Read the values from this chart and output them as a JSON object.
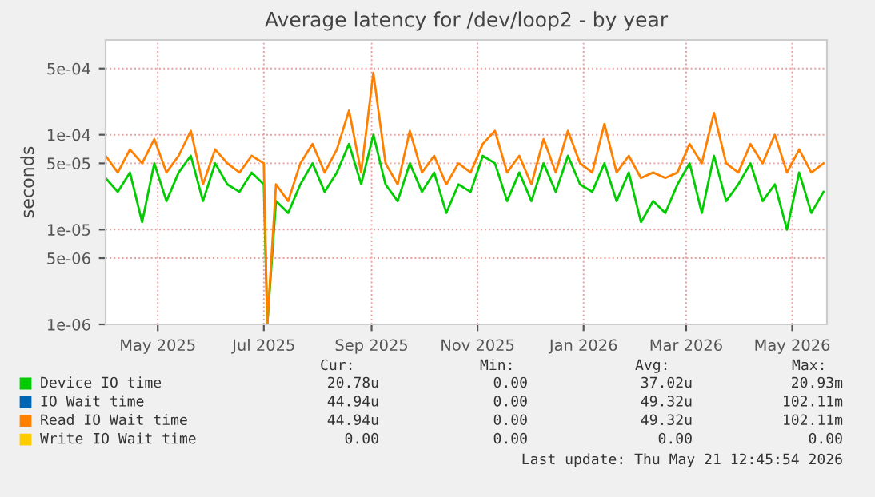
{
  "chart_data": {
    "type": "line",
    "title": "Average latency for /dev/loop2 - by year",
    "ylabel": "seconds",
    "x": [
      "2025-04-01",
      "2025-04-08",
      "2025-04-15",
      "2025-04-22",
      "2025-04-29",
      "2025-05-06",
      "2025-05-13",
      "2025-05-20",
      "2025-05-27",
      "2025-06-03",
      "2025-06-10",
      "2025-06-17",
      "2025-06-24",
      "2025-07-01",
      "2025-07-03",
      "2025-07-08",
      "2025-07-15",
      "2025-07-22",
      "2025-07-29",
      "2025-08-05",
      "2025-08-12",
      "2025-08-19",
      "2025-08-26",
      "2025-09-02",
      "2025-09-09",
      "2025-09-16",
      "2025-09-23",
      "2025-09-30",
      "2025-10-07",
      "2025-10-14",
      "2025-10-21",
      "2025-10-28",
      "2025-11-04",
      "2025-11-11",
      "2025-11-18",
      "2025-11-25",
      "2025-12-02",
      "2025-12-09",
      "2025-12-16",
      "2025-12-23",
      "2025-12-30",
      "2026-01-06",
      "2026-01-13",
      "2026-01-20",
      "2026-01-27",
      "2026-02-03",
      "2026-02-10",
      "2026-02-17",
      "2026-02-24",
      "2026-03-03",
      "2026-03-10",
      "2026-03-17",
      "2026-03-24",
      "2026-03-31",
      "2026-04-07",
      "2026-04-14",
      "2026-04-21",
      "2026-04-28",
      "2026-05-05",
      "2026-05-12",
      "2026-05-19"
    ],
    "series": [
      {
        "name": "Device IO time",
        "color": "#00cc00",
        "values": [
          3.5e-05,
          2.5e-05,
          4e-05,
          1.2e-05,
          5e-05,
          2e-05,
          4e-05,
          6e-05,
          2e-05,
          5e-05,
          3e-05,
          2.5e-05,
          4e-05,
          3e-05,
          1e-06,
          2e-05,
          1.5e-05,
          3e-05,
          5e-05,
          2.5e-05,
          4e-05,
          8e-05,
          3e-05,
          0.0001,
          3e-05,
          2e-05,
          5e-05,
          2.5e-05,
          4e-05,
          1.5e-05,
          3e-05,
          2.5e-05,
          6e-05,
          5e-05,
          2e-05,
          4e-05,
          2e-05,
          5e-05,
          2.5e-05,
          6e-05,
          3e-05,
          2.5e-05,
          5e-05,
          2e-05,
          4e-05,
          1.2e-05,
          2e-05,
          1.5e-05,
          3e-05,
          5e-05,
          1.5e-05,
          6e-05,
          2e-05,
          3e-05,
          5e-05,
          2e-05,
          3e-05,
          1e-05,
          4e-05,
          1.5e-05,
          2.5e-05
        ]
      },
      {
        "name": "IO Wait time",
        "color": "#0066b3",
        "values": [
          null,
          null,
          null,
          null,
          null,
          null,
          null,
          null,
          null,
          null,
          null,
          null,
          null,
          null,
          null,
          null,
          null,
          null,
          null,
          null,
          null,
          null,
          null,
          null,
          null,
          null,
          null,
          null,
          null,
          null,
          null,
          null,
          null,
          null,
          null,
          null,
          null,
          null,
          null,
          null,
          null,
          null,
          null,
          null,
          null,
          null,
          null,
          null,
          null,
          null,
          null,
          null,
          null,
          null,
          null,
          null,
          null,
          null,
          null,
          null,
          null
        ]
      },
      {
        "name": "Read IO Wait time",
        "color": "#ff8000",
        "values": [
          6e-05,
          4e-05,
          7e-05,
          5e-05,
          9e-05,
          4e-05,
          6e-05,
          0.00011,
          3e-05,
          7e-05,
          5e-05,
          4e-05,
          6e-05,
          5e-05,
          1e-06,
          3e-05,
          2e-05,
          5e-05,
          8e-05,
          4e-05,
          7e-05,
          0.00018,
          4e-05,
          0.00045,
          5e-05,
          3e-05,
          0.00011,
          4e-05,
          6e-05,
          3e-05,
          5e-05,
          4e-05,
          8e-05,
          0.00011,
          4e-05,
          6e-05,
          3e-05,
          9e-05,
          4e-05,
          0.00011,
          5e-05,
          4e-05,
          0.00013,
          4e-05,
          6e-05,
          3.5e-05,
          4e-05,
          3.5e-05,
          4e-05,
          8e-05,
          5e-05,
          0.00017,
          5e-05,
          4e-05,
          8e-05,
          5e-05,
          0.0001,
          4e-05,
          7e-05,
          4e-05,
          5e-05
        ]
      },
      {
        "name": "Write IO Wait time",
        "color": "#ffcc00",
        "values": [
          null,
          null,
          null,
          null,
          null,
          null,
          null,
          null,
          null,
          null,
          null,
          null,
          null,
          null,
          null,
          null,
          null,
          null,
          null,
          null,
          null,
          null,
          null,
          null,
          null,
          null,
          null,
          null,
          null,
          null,
          null,
          null,
          null,
          null,
          null,
          null,
          null,
          null,
          null,
          null,
          null,
          null,
          null,
          null,
          null,
          null,
          null,
          null,
          null,
          null,
          null,
          null,
          null,
          null,
          null,
          null,
          null,
          null,
          null,
          null,
          null
        ]
      }
    ],
    "log": "y",
    "xlim": [
      "2025-04-01",
      "2026-05-21"
    ],
    "xticks": [
      {
        "value": "2025-05-01",
        "label": "May 2025"
      },
      {
        "value": "2025-07-01",
        "label": "Jul 2025"
      },
      {
        "value": "2025-09-01",
        "label": "Sep 2025"
      },
      {
        "value": "2025-11-01",
        "label": "Nov 2025"
      },
      {
        "value": "2026-01-01",
        "label": "Jan 2026"
      },
      {
        "value": "2026-03-01",
        "label": "Mar 2026"
      },
      {
        "value": "2026-05-01",
        "label": "May 2026"
      }
    ],
    "ylim": [
      1e-06,
      0.001
    ],
    "yticks": [
      {
        "value": 1e-06,
        "label": "1e-06"
      },
      {
        "value": 5e-06,
        "label": "5e-06"
      },
      {
        "value": 1e-05,
        "label": "1e-05"
      },
      {
        "value": 5e-05,
        "label": "5e-05"
      },
      {
        "value": 0.0001,
        "label": "1e-04"
      },
      {
        "value": 0.0005,
        "label": "5e-04"
      }
    ],
    "grid": true,
    "legend": "bottom",
    "annotations": [
      "Cur:",
      "Min:",
      "Avg:",
      "Max:",
      "20.78u",
      "0.00",
      "37.02u",
      "20.93m",
      "44.94u",
      "0.00",
      "49.32u",
      "102.11m",
      "44.94u",
      "0.00",
      "49.32u",
      "102.11m",
      "0.00",
      "0.00",
      "0.00",
      "0.00",
      "Last update: Thu May 21 12:45:54 2026"
    ]
  }
}
